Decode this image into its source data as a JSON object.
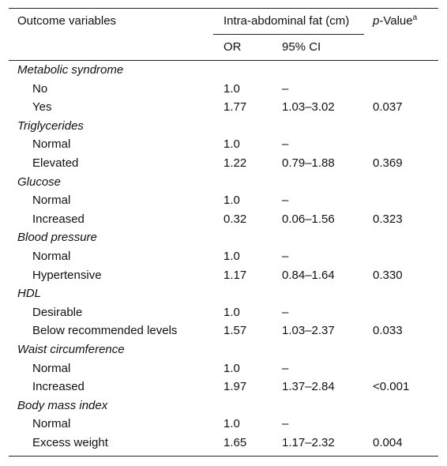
{
  "header": {
    "outcome_label": "Outcome variables",
    "group_label": "Intra-abdominal fat (cm)",
    "pvalue_prefix": "p",
    "pvalue_suffix": "-Value",
    "pvalue_sup": "a",
    "or_label": "OR",
    "ci_label": "95% CI"
  },
  "groups": [
    {
      "name": "Metabolic syndrome",
      "rows": [
        {
          "label": "No",
          "or": "1.0",
          "ci": "–",
          "p": ""
        },
        {
          "label": "Yes",
          "or": "1.77",
          "ci": "1.03–3.02",
          "p": "0.037"
        }
      ]
    },
    {
      "name": "Triglycerides",
      "rows": [
        {
          "label": "Normal",
          "or": "1.0",
          "ci": "–",
          "p": ""
        },
        {
          "label": "Elevated",
          "or": "1.22",
          "ci": "0.79–1.88",
          "p": "0.369"
        }
      ]
    },
    {
      "name": "Glucose",
      "rows": [
        {
          "label": "Normal",
          "or": "1.0",
          "ci": "–",
          "p": ""
        },
        {
          "label": "Increased",
          "or": "0.32",
          "ci": "0.06–1.56",
          "p": "0.323"
        }
      ]
    },
    {
      "name": "Blood pressure",
      "rows": [
        {
          "label": "Normal",
          "or": "1.0",
          "ci": "–",
          "p": ""
        },
        {
          "label": "Hypertensive",
          "or": "1.17",
          "ci": "0.84–1.64",
          "p": "0.330"
        }
      ]
    },
    {
      "name": "HDL",
      "rows": [
        {
          "label": "Desirable",
          "or": "1.0",
          "ci": "–",
          "p": ""
        },
        {
          "label": "Below recommended levels",
          "or": "1.57",
          "ci": "1.03–2.37",
          "p": "0.033"
        }
      ]
    },
    {
      "name": "Waist circumference",
      "rows": [
        {
          "label": "Normal",
          "or": "1.0",
          "ci": "–",
          "p": ""
        },
        {
          "label": "Increased",
          "or": "1.97",
          "ci": "1.37–2.84",
          "p": "<0.001"
        }
      ]
    },
    {
      "name": "Body mass index",
      "rows": [
        {
          "label": "Normal",
          "or": "1.0",
          "ci": "–",
          "p": ""
        },
        {
          "label": "Excess weight",
          "or": "1.65",
          "ci": "1.17–2.32",
          "p": "0.004"
        }
      ]
    }
  ]
}
